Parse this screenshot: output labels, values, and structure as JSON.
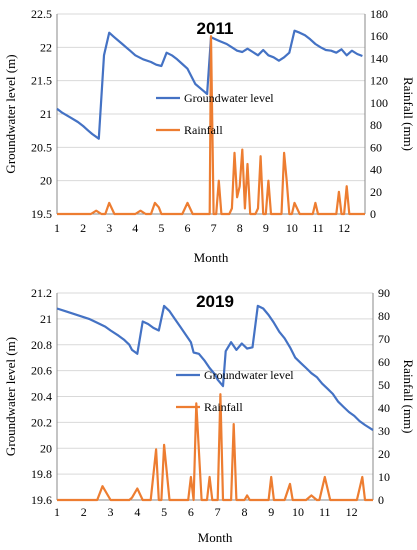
{
  "chart_data": [
    {
      "type": "line",
      "title": "2011",
      "xlabel": "Month",
      "ylabel": "Groundwater level (m)",
      "y2label": "Rainfall (mm)",
      "xlim": [
        1,
        12.8
      ],
      "ylim": [
        19.5,
        22.5
      ],
      "y2lim": [
        0,
        180
      ],
      "xticks": [
        "1",
        "2",
        "3",
        "4",
        "5",
        "6",
        "7",
        "8",
        "9",
        "10",
        "11",
        "12"
      ],
      "yticks": [
        "19.5",
        "20",
        "20.5",
        "21",
        "21.5",
        "22",
        "22.5"
      ],
      "y2ticks": [
        "0",
        "20",
        "40",
        "60",
        "80",
        "100",
        "120",
        "140",
        "160",
        "180"
      ],
      "legend": [
        "Groundwater level",
        "Rainfall"
      ],
      "colors": {
        "groundwater": "#4472C4",
        "rainfall": "#ED7D31"
      },
      "series": [
        {
          "name": "Groundwater level",
          "axis": "left",
          "x": [
            1,
            1.2,
            1.5,
            1.8,
            2.0,
            2.2,
            2.35,
            2.6,
            2.8,
            3.0,
            3.2,
            3.5,
            3.8,
            4.0,
            4.3,
            4.6,
            4.8,
            5.0,
            5.2,
            5.4,
            5.6,
            5.8,
            6.0,
            6.3,
            6.6,
            6.75,
            6.9,
            7.2,
            7.5,
            7.7,
            7.9,
            8.1,
            8.3,
            8.5,
            8.7,
            8.9,
            9.1,
            9.3,
            9.5,
            9.7,
            9.9,
            10.1,
            10.3,
            10.5,
            10.7,
            10.9,
            11.1,
            11.3,
            11.5,
            11.7,
            11.9,
            12.1,
            12.3,
            12.5,
            12.7
          ],
          "values": [
            21.08,
            21.02,
            20.95,
            20.88,
            20.82,
            20.75,
            20.7,
            20.63,
            21.88,
            22.22,
            22.15,
            22.05,
            21.95,
            21.88,
            21.82,
            21.78,
            21.74,
            21.72,
            21.92,
            21.88,
            21.82,
            21.75,
            21.68,
            21.45,
            21.35,
            21.3,
            22.15,
            22.1,
            22.05,
            22.0,
            21.95,
            21.93,
            21.98,
            21.93,
            21.88,
            21.96,
            21.88,
            21.85,
            21.8,
            21.85,
            21.92,
            22.25,
            22.22,
            22.18,
            22.12,
            22.05,
            22.0,
            21.96,
            21.95,
            21.92,
            21.97,
            21.88,
            21.95,
            21.9,
            21.87
          ]
        },
        {
          "name": "Rainfall",
          "axis": "right",
          "x": [
            1,
            1.5,
            2.0,
            2.2,
            2.3,
            2.5,
            2.7,
            2.85,
            3.0,
            3.2,
            3.5,
            3.8,
            4.0,
            4.2,
            4.4,
            4.6,
            4.75,
            4.9,
            5.0,
            5.2,
            5.4,
            5.6,
            5.8,
            6.0,
            6.2,
            6.4,
            6.6,
            6.7,
            6.8,
            6.85,
            6.9,
            7.0,
            7.05,
            7.1,
            7.2,
            7.3,
            7.45,
            7.6,
            7.7,
            7.8,
            7.9,
            8.0,
            8.1,
            8.2,
            8.3,
            8.4,
            8.5,
            8.6,
            8.7,
            8.8,
            8.9,
            9.0,
            9.1,
            9.2,
            9.3,
            9.4,
            9.5,
            9.6,
            9.7,
            9.8,
            9.9,
            10.0,
            10.1,
            10.3,
            10.5,
            10.7,
            10.8,
            10.9,
            11.0,
            11.2,
            11.4,
            11.5,
            11.6,
            11.7,
            11.8,
            11.9,
            12.0,
            12.1,
            12.2,
            12.3,
            12.5,
            12.8
          ],
          "values": [
            0,
            0,
            0,
            0,
            0,
            3,
            0,
            0,
            10,
            0,
            0,
            0,
            0,
            3,
            0,
            0,
            10,
            6,
            0,
            0,
            0,
            0,
            0,
            10,
            0,
            0,
            0,
            0,
            0,
            0,
            160,
            0,
            0,
            0,
            30,
            0,
            0,
            0,
            5,
            55,
            15,
            25,
            58,
            5,
            45,
            0,
            0,
            0,
            5,
            52,
            0,
            0,
            30,
            0,
            0,
            0,
            0,
            0,
            55,
            30,
            0,
            0,
            10,
            0,
            0,
            0,
            0,
            10,
            0,
            0,
            0,
            0,
            0,
            0,
            20,
            0,
            0,
            25,
            0,
            0,
            0,
            0
          ]
        }
      ]
    },
    {
      "type": "line",
      "title": "2019",
      "xlabel": "Month",
      "ylabel": "Groundwater level (m)",
      "y2label": "Rainfall (mm)",
      "xlim": [
        1,
        12.8
      ],
      "ylim": [
        19.6,
        21.2
      ],
      "y2lim": [
        0,
        90
      ],
      "xticks": [
        "1",
        "2",
        "3",
        "4",
        "5",
        "6",
        "7",
        "8",
        "9",
        "10",
        "11",
        "12"
      ],
      "yticks": [
        "19.6",
        "19.8",
        "20",
        "20.2",
        "20.4",
        "20.6",
        "20.8",
        "21",
        "21.2"
      ],
      "y2ticks": [
        "0",
        "10",
        "20",
        "30",
        "40",
        "50",
        "60",
        "70",
        "80",
        "90"
      ],
      "legend": [
        "Groundwater level",
        "Rainfall"
      ],
      "colors": {
        "groundwater": "#4472C4",
        "rainfall": "#ED7D31"
      },
      "series": [
        {
          "name": "Groundwater level",
          "axis": "left",
          "x": [
            1,
            1.3,
            1.6,
            1.9,
            2.2,
            2.5,
            2.8,
            3.0,
            3.3,
            3.5,
            3.7,
            3.8,
            4.0,
            4.2,
            4.4,
            4.6,
            4.8,
            5.0,
            5.2,
            5.4,
            5.6,
            5.8,
            6.0,
            6.1,
            6.3,
            6.5,
            6.7,
            6.9,
            7.0,
            7.2,
            7.3,
            7.5,
            7.7,
            7.9,
            8.1,
            8.3,
            8.5,
            8.7,
            8.9,
            9.1,
            9.3,
            9.5,
            9.7,
            9.9,
            10.1,
            10.3,
            10.5,
            10.7,
            10.9,
            11.1,
            11.3,
            11.5,
            11.7,
            11.9,
            12.1,
            12.3,
            12.5,
            12.8
          ],
          "values": [
            21.08,
            21.06,
            21.04,
            21.02,
            21.0,
            20.97,
            20.94,
            20.91,
            20.87,
            20.84,
            20.8,
            20.76,
            20.73,
            20.98,
            20.96,
            20.93,
            20.91,
            21.1,
            21.06,
            21.0,
            20.94,
            20.88,
            20.82,
            20.74,
            20.73,
            20.68,
            20.62,
            20.57,
            20.53,
            20.48,
            20.75,
            20.82,
            20.76,
            20.81,
            20.77,
            20.78,
            21.1,
            21.08,
            21.03,
            20.97,
            20.9,
            20.85,
            20.78,
            20.7,
            20.66,
            20.62,
            20.58,
            20.55,
            20.5,
            20.46,
            20.42,
            20.36,
            20.32,
            20.28,
            20.25,
            20.21,
            20.18,
            20.14
          ]
        },
        {
          "name": "Rainfall",
          "axis": "right",
          "x": [
            1,
            1.5,
            2.0,
            2.3,
            2.5,
            2.7,
            3.0,
            3.3,
            3.5,
            3.7,
            3.8,
            4.0,
            4.2,
            4.4,
            4.5,
            4.7,
            4.8,
            4.9,
            5.0,
            5.2,
            5.4,
            5.5,
            5.6,
            5.8,
            5.9,
            6.0,
            6.1,
            6.2,
            6.4,
            6.5,
            6.6,
            6.7,
            6.8,
            6.9,
            7.0,
            7.1,
            7.2,
            7.3,
            7.4,
            7.5,
            7.6,
            7.7,
            7.8,
            7.9,
            8.0,
            8.1,
            8.2,
            8.3,
            8.4,
            8.5,
            8.6,
            8.7,
            8.9,
            9.0,
            9.1,
            9.2,
            9.4,
            9.5,
            9.7,
            9.8,
            10.0,
            10.1,
            10.3,
            10.5,
            10.7,
            10.8,
            11.0,
            11.2,
            11.4,
            11.6,
            11.8,
            12.0,
            12.2,
            12.4,
            12.5,
            12.6,
            12.8
          ],
          "values": [
            0,
            0,
            0,
            0,
            0,
            6,
            0,
            0,
            0,
            0,
            1,
            5,
            0,
            0,
            0,
            22,
            0,
            0,
            24,
            0,
            0,
            0,
            0,
            0,
            0,
            10,
            0,
            42,
            0,
            0,
            0,
            10,
            0,
            0,
            0,
            46,
            0,
            0,
            0,
            0,
            33,
            0,
            0,
            0,
            0,
            2,
            0,
            0,
            0,
            0,
            0,
            0,
            0,
            10,
            0,
            0,
            0,
            0,
            7,
            0,
            0,
            0,
            0,
            2,
            0,
            0,
            10,
            0,
            0,
            0,
            0,
            0,
            0,
            10,
            0,
            0,
            0
          ]
        }
      ]
    }
  ]
}
